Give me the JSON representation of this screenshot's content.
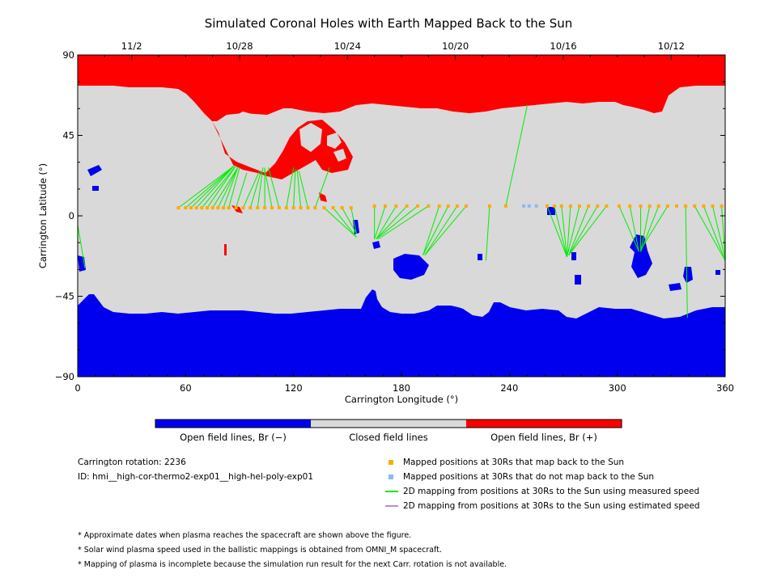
{
  "title": "Simulated Coronal Holes with Earth Mapped Back to the Sun",
  "chart_data": {
    "type": "map",
    "title": "Simulated Coronal Holes with Earth Mapped Back to the Sun",
    "xlabel": "Carrington Longitude (°)",
    "ylabel": "Carrington Latitude (°)",
    "xlim": [
      0,
      360
    ],
    "ylim": [
      -90,
      90
    ],
    "x_ticks": [
      0,
      60,
      120,
      180,
      240,
      300,
      360
    ],
    "y_ticks": [
      -90,
      -45,
      0,
      45,
      90
    ],
    "x_tick_labels": [
      "0",
      "60",
      "120",
      "180",
      "240",
      "300",
      "360"
    ],
    "y_tick_labels": [
      "−90",
      "−45",
      "0",
      "45",
      "90"
    ],
    "top_axis": {
      "labels": [
        "11/2",
        "10/28",
        "10/24",
        "10/20",
        "10/16",
        "10/12"
      ],
      "longitudes": [
        30,
        90,
        150,
        210,
        270,
        330
      ]
    },
    "colors": {
      "open_negative": "#0000ee",
      "closed": "#d9d9d9",
      "open_positive": "#ff0000",
      "mapped": "#ffaa00",
      "unmapped": "#88bbee",
      "measured_line": "#00ee00",
      "estimated_line": "#bb88ee"
    },
    "mapped_points": [
      {
        "lon": 56,
        "lat": 4.5
      },
      {
        "lon": 60,
        "lat": 4.5
      },
      {
        "lon": 63,
        "lat": 4.5
      },
      {
        "lon": 66,
        "lat": 4.5
      },
      {
        "lon": 69,
        "lat": 4.5
      },
      {
        "lon": 72,
        "lat": 4.5
      },
      {
        "lon": 75,
        "lat": 4.5
      },
      {
        "lon": 78,
        "lat": 4.5
      },
      {
        "lon": 81,
        "lat": 4.5
      },
      {
        "lon": 84,
        "lat": 4.5
      },
      {
        "lon": 88,
        "lat": 4.5
      },
      {
        "lon": 92,
        "lat": 4.5
      },
      {
        "lon": 96,
        "lat": 4.5
      },
      {
        "lon": 100,
        "lat": 4.5
      },
      {
        "lon": 104,
        "lat": 4.5
      },
      {
        "lon": 108,
        "lat": 4.5
      },
      {
        "lon": 112,
        "lat": 4.5
      },
      {
        "lon": 116,
        "lat": 4.5
      },
      {
        "lon": 120,
        "lat": 4.5
      },
      {
        "lon": 124,
        "lat": 4.5
      },
      {
        "lon": 128,
        "lat": 4.5
      },
      {
        "lon": 132,
        "lat": 4.5
      },
      {
        "lon": 137,
        "lat": 4.5
      },
      {
        "lon": 142,
        "lat": 4.5
      },
      {
        "lon": 147,
        "lat": 4.5
      },
      {
        "lon": 152,
        "lat": 4.5
      },
      {
        "lon": 165,
        "lat": 5.5
      },
      {
        "lon": 171,
        "lat": 5.5
      },
      {
        "lon": 177,
        "lat": 5.5
      },
      {
        "lon": 183,
        "lat": 5.5
      },
      {
        "lon": 189,
        "lat": 5.5
      },
      {
        "lon": 195,
        "lat": 5.5
      },
      {
        "lon": 201,
        "lat": 5.5
      },
      {
        "lon": 206,
        "lat": 5.5
      },
      {
        "lon": 211,
        "lat": 5.5
      },
      {
        "lon": 216,
        "lat": 5.5
      },
      {
        "lon": 229,
        "lat": 5.5
      },
      {
        "lon": 238,
        "lat": 5.5
      },
      {
        "lon": 261,
        "lat": 5.5
      },
      {
        "lon": 265,
        "lat": 5.5
      },
      {
        "lon": 269,
        "lat": 5.5
      },
      {
        "lon": 274,
        "lat": 5.5
      },
      {
        "lon": 279,
        "lat": 5.5
      },
      {
        "lon": 284,
        "lat": 5.5
      },
      {
        "lon": 289,
        "lat": 5.5
      },
      {
        "lon": 294,
        "lat": 5.5
      },
      {
        "lon": 301,
        "lat": 5.5
      },
      {
        "lon": 307,
        "lat": 5.5
      },
      {
        "lon": 313,
        "lat": 5.5
      },
      {
        "lon": 318,
        "lat": 5.5
      },
      {
        "lon": 323,
        "lat": 5.5
      },
      {
        "lon": 328,
        "lat": 5.5
      },
      {
        "lon": 333,
        "lat": 5.5
      },
      {
        "lon": 338,
        "lat": 5.5
      },
      {
        "lon": 343,
        "lat": 5.5
      },
      {
        "lon": 348,
        "lat": 5.5
      },
      {
        "lon": 353,
        "lat": 5.5
      },
      {
        "lon": 358,
        "lat": 5.5
      }
    ],
    "unmapped_points": [
      {
        "lon": 248,
        "lat": 5.5
      },
      {
        "lon": 251,
        "lat": 5.5
      },
      {
        "lon": 255,
        "lat": 5.5
      }
    ],
    "mapping_lines": [
      {
        "from": [
          56,
          4.5
        ],
        "to": [
          87,
          28
        ]
      },
      {
        "from": [
          60,
          4.5
        ],
        "to": [
          87,
          28
        ]
      },
      {
        "from": [
          63,
          4.5
        ],
        "to": [
          87,
          28
        ]
      },
      {
        "from": [
          66,
          4.5
        ],
        "to": [
          87,
          28
        ]
      },
      {
        "from": [
          69,
          4.5
        ],
        "to": [
          88,
          28
        ]
      },
      {
        "from": [
          72,
          4.5
        ],
        "to": [
          88,
          28
        ]
      },
      {
        "from": [
          75,
          4.5
        ],
        "to": [
          89,
          27
        ]
      },
      {
        "from": [
          78,
          4.5
        ],
        "to": [
          89,
          27
        ]
      },
      {
        "from": [
          81,
          4.5
        ],
        "to": [
          89,
          27
        ]
      },
      {
        "from": [
          84,
          4.5
        ],
        "to": [
          90,
          27
        ]
      },
      {
        "from": [
          88,
          4.5
        ],
        "to": [
          94,
          24
        ]
      },
      {
        "from": [
          92,
          4.5
        ],
        "to": [
          101,
          25
        ]
      },
      {
        "from": [
          96,
          4.5
        ],
        "to": [
          102,
          25
        ]
      },
      {
        "from": [
          100,
          4.5
        ],
        "to": [
          103,
          27
        ]
      },
      {
        "from": [
          104,
          4.5
        ],
        "to": [
          104,
          27
        ]
      },
      {
        "from": [
          108,
          4.5
        ],
        "to": [
          104,
          26
        ]
      },
      {
        "from": [
          112,
          4.5
        ],
        "to": [
          106,
          27
        ]
      },
      {
        "from": [
          116,
          4.5
        ],
        "to": [
          120,
          27
        ]
      },
      {
        "from": [
          120,
          4.5
        ],
        "to": [
          121,
          26
        ]
      },
      {
        "from": [
          124,
          4.5
        ],
        "to": [
          122,
          26
        ]
      },
      {
        "from": [
          128,
          4.5
        ],
        "to": [
          123,
          25
        ]
      },
      {
        "from": [
          132,
          4.5
        ],
        "to": [
          140,
          27
        ]
      },
      {
        "from": [
          137,
          4.5
        ],
        "to": [
          155,
          -12
        ]
      },
      {
        "from": [
          142,
          4.5
        ],
        "to": [
          155,
          -12
        ]
      },
      {
        "from": [
          147,
          4.5
        ],
        "to": [
          155,
          -10
        ]
      },
      {
        "from": [
          152,
          4.5
        ],
        "to": [
          155,
          -10
        ]
      },
      {
        "from": [
          165,
          5.5
        ],
        "to": [
          165,
          -13
        ]
      },
      {
        "from": [
          171,
          5.5
        ],
        "to": [
          165,
          -13
        ]
      },
      {
        "from": [
          177,
          5.5
        ],
        "to": [
          166,
          -13
        ]
      },
      {
        "from": [
          183,
          5.5
        ],
        "to": [
          166,
          -13
        ]
      },
      {
        "from": [
          189,
          5.5
        ],
        "to": [
          166,
          -13
        ]
      },
      {
        "from": [
          195,
          5.5
        ],
        "to": [
          167,
          -13
        ]
      },
      {
        "from": [
          201,
          5.5
        ],
        "to": [
          192,
          -22
        ]
      },
      {
        "from": [
          206,
          5.5
        ],
        "to": [
          192,
          -22
        ]
      },
      {
        "from": [
          211,
          5.5
        ],
        "to": [
          193,
          -22
        ]
      },
      {
        "from": [
          216,
          5.5
        ],
        "to": [
          193,
          -22
        ]
      },
      {
        "from": [
          229,
          5.5
        ],
        "to": [
          227,
          -25
        ]
      },
      {
        "from": [
          238,
          5.5
        ],
        "to": [
          250,
          62
        ]
      },
      {
        "from": [
          261,
          5.5
        ],
        "to": [
          272,
          -23
        ]
      },
      {
        "from": [
          265,
          5.5
        ],
        "to": [
          272,
          -23
        ]
      },
      {
        "from": [
          269,
          5.5
        ],
        "to": [
          272,
          -23
        ]
      },
      {
        "from": [
          274,
          5.5
        ],
        "to": [
          272,
          -23
        ]
      },
      {
        "from": [
          279,
          5.5
        ],
        "to": [
          272,
          -23
        ]
      },
      {
        "from": [
          284,
          5.5
        ],
        "to": [
          273,
          -22
        ]
      },
      {
        "from": [
          289,
          5.5
        ],
        "to": [
          273,
          -22
        ]
      },
      {
        "from": [
          294,
          5.5
        ],
        "to": [
          273,
          -22
        ]
      },
      {
        "from": [
          301,
          5.5
        ],
        "to": [
          312,
          -20
        ]
      },
      {
        "from": [
          307,
          5.5
        ],
        "to": [
          312,
          -20
        ]
      },
      {
        "from": [
          313,
          5.5
        ],
        "to": [
          313,
          -20
        ]
      },
      {
        "from": [
          318,
          5.5
        ],
        "to": [
          313,
          -20
        ]
      },
      {
        "from": [
          323,
          5.5
        ],
        "to": [
          313,
          -20
        ]
      },
      {
        "from": [
          328,
          5.5
        ],
        "to": [
          313,
          -19
        ]
      },
      {
        "from": [
          338,
          5.5
        ],
        "to": [
          339,
          -57
        ]
      },
      {
        "from": [
          343,
          5.5
        ],
        "to": [
          360,
          -25
        ]
      },
      {
        "from": [
          348,
          5.5
        ],
        "to": [
          360,
          -25
        ]
      },
      {
        "from": [
          353,
          5.5
        ],
        "to": [
          360,
          -24
        ]
      },
      {
        "from": [
          358,
          5.5
        ],
        "to": [
          360,
          -24
        ]
      },
      {
        "from": [
          0,
          -5
        ],
        "to": [
          4,
          -29
        ]
      }
    ],
    "colorbar": {
      "labels": [
        "Open field lines, Br (−)",
        "Closed field lines",
        "Open field lines, Br (+)"
      ]
    }
  },
  "info": {
    "rotation": "Carrington rotation: 2236",
    "id": "ID: hmi__high-cor-thermo2-exp01__high-hel-poly-exp01"
  },
  "legend": [
    {
      "label": "Mapped positions at 30Rs that map back to the Sun",
      "kind": "square",
      "color": "#ffaa00"
    },
    {
      "label": "Mapped positions at 30Rs that do not map back to the Sun",
      "kind": "square",
      "color": "#88bbee"
    },
    {
      "label": "2D mapping from positions at 30Rs to the Sun using measured speed",
      "kind": "line",
      "color": "#00ee00"
    },
    {
      "label": "2D mapping from positions at 30Rs to the Sun using estimated speed",
      "kind": "line",
      "color": "#bb88ee"
    }
  ],
  "notes": [
    "* Approximate dates when plasma reaches the spacecraft are shown above the figure.",
    "* Solar wind plasma speed used in the ballistic mappings is obtained from OMNI_M spacecraft.",
    "* Mapping of plasma is incomplete because the simulation run result for the next Carr. rotation is not available."
  ]
}
